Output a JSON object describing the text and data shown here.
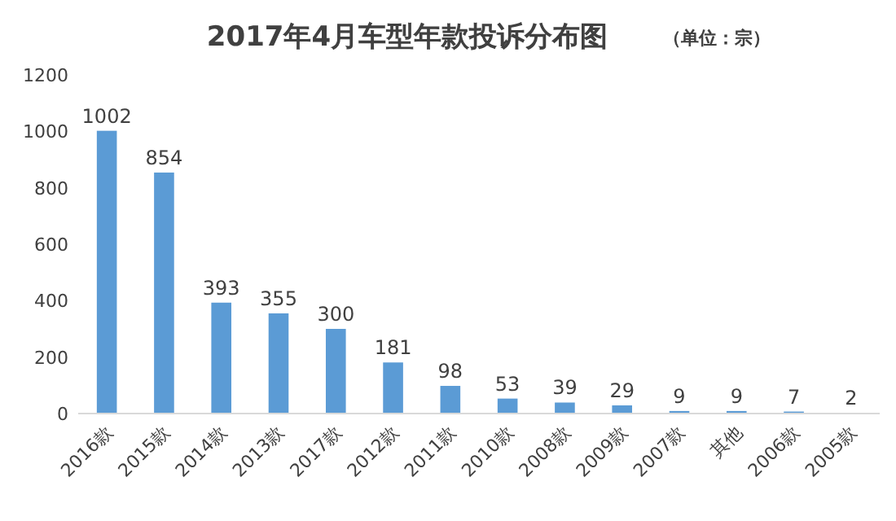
{
  "chart_data": {
    "type": "bar",
    "title": "2017年4月车型年款投诉分布图",
    "subtitle": "（单位：宗）",
    "categories": [
      "2016款",
      "2015款",
      "2014款",
      "2013款",
      "2017款",
      "2012款",
      "2011款",
      "2010款",
      "2008款",
      "2009款",
      "2007款",
      "其他",
      "2006款",
      "2005款"
    ],
    "values": [
      1002,
      854,
      393,
      355,
      300,
      181,
      98,
      53,
      39,
      29,
      9,
      9,
      7,
      2
    ],
    "color": "#5b9bd5",
    "ylim": [
      0,
      1200
    ],
    "yticks": [
      0,
      200,
      400,
      600,
      800,
      1000,
      1200
    ],
    "data_labels": true
  }
}
